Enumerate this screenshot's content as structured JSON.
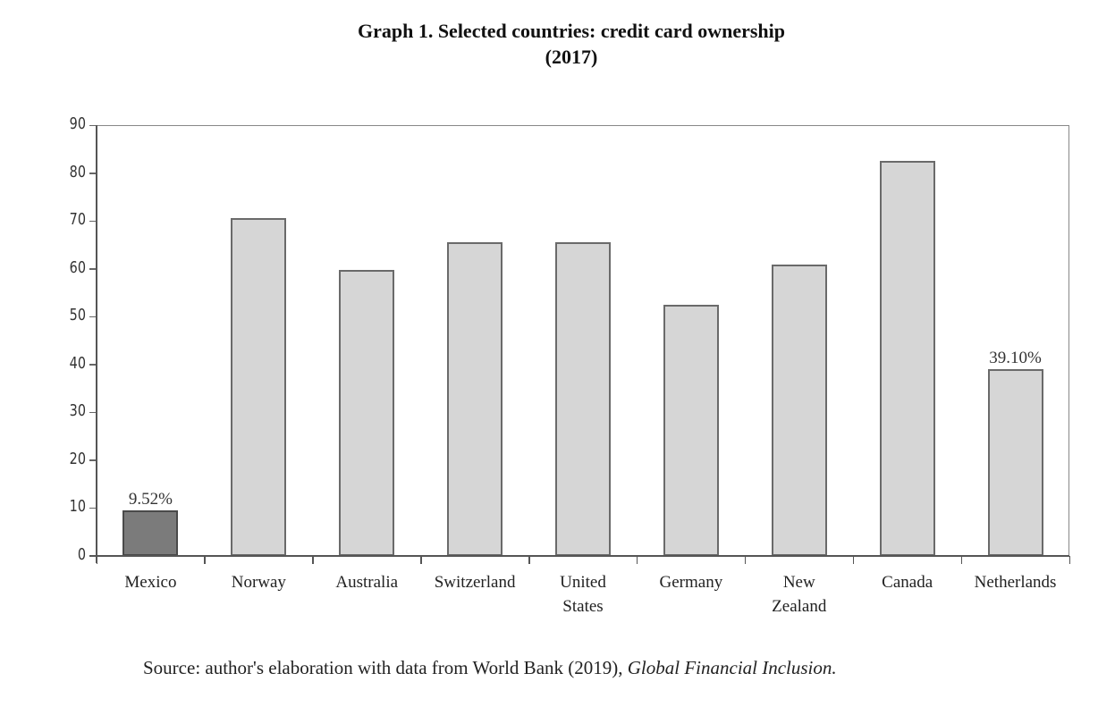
{
  "chart_data": {
    "type": "bar",
    "title": "Graph 1. Selected countries: credit card ownership",
    "subtitle": "(2017)",
    "xlabel": "",
    "ylabel": "",
    "ylim": [
      0,
      90
    ],
    "yticks": [
      0,
      10,
      20,
      30,
      40,
      50,
      60,
      70,
      80,
      90
    ],
    "grid": false,
    "legend": null,
    "categories": [
      "Mexico",
      "Norway",
      "Australia",
      "Switzerland",
      "United States",
      "Germany",
      "New Zealand",
      "Canada",
      "Netherlands"
    ],
    "category_label_lines": [
      [
        "Mexico"
      ],
      [
        "Norway"
      ],
      [
        "Australia"
      ],
      [
        "Switzerland"
      ],
      [
        "United",
        "States"
      ],
      [
        "Germany"
      ],
      [
        "New",
        "Zealand"
      ],
      [
        "Canada"
      ],
      [
        "Netherlands"
      ]
    ],
    "values": [
      9.52,
      70.5,
      59.7,
      65.5,
      65.6,
      52.5,
      60.8,
      82.6,
      39.1
    ],
    "annotations": [
      {
        "category": "Mexico",
        "text": "9.52%"
      },
      {
        "category": "Netherlands",
        "text": "39.10%"
      }
    ],
    "highlight": "Mexico",
    "colors": {
      "bar": "#d6d6d6",
      "highlight_bar": "#7b7b7b",
      "bar_border": "#6a6a6a"
    }
  },
  "header": {
    "title_line1": "Graph 1. Selected countries: credit card ownership",
    "title_line2": "(2017)"
  },
  "footer": {
    "source_prefix": "Source: author's elaboration with data from World Bank (2019), ",
    "source_italic": "Global Financial Inclusion."
  }
}
